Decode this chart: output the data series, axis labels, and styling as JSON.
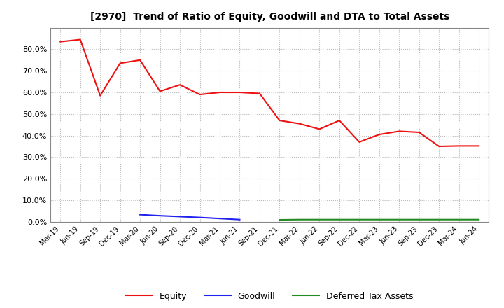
{
  "title": "[2970]  Trend of Ratio of Equity, Goodwill and DTA to Total Assets",
  "labels": [
    "Mar-19",
    "Jun-19",
    "Sep-19",
    "Dec-19",
    "Mar-20",
    "Jun-20",
    "Sep-20",
    "Dec-20",
    "Mar-21",
    "Jun-21",
    "Sep-21",
    "Dec-21",
    "Mar-22",
    "Jun-22",
    "Sep-22",
    "Dec-22",
    "Mar-23",
    "Jun-23",
    "Sep-23",
    "Dec-23",
    "Mar-24",
    "Jun-24"
  ],
  "equity": [
    0.835,
    0.845,
    0.585,
    0.735,
    0.75,
    0.605,
    0.635,
    0.59,
    0.6,
    0.6,
    0.595,
    0.47,
    0.455,
    0.43,
    0.47,
    0.37,
    0.405,
    0.42,
    0.415,
    0.35,
    0.352,
    0.352
  ],
  "goodwill": [
    null,
    null,
    null,
    null,
    0.033,
    0.028,
    0.024,
    0.02,
    0.015,
    0.01,
    null,
    null,
    null,
    null,
    null,
    null,
    null,
    null,
    null,
    null,
    null,
    null
  ],
  "dta": [
    null,
    null,
    null,
    null,
    null,
    null,
    null,
    null,
    null,
    null,
    null,
    0.009,
    0.01,
    0.01,
    0.01,
    0.01,
    0.01,
    0.01,
    0.01,
    0.01,
    0.01,
    0.01
  ],
  "equity_color": "#EE1111",
  "goodwill_color": "#2222EE",
  "dta_color": "#228B22",
  "bg_color": "#FFFFFF",
  "plot_bg_color": "#FFFFFF",
  "grid_color": "#BBBBBB",
  "ylim": [
    0.0,
    0.9
  ],
  "yticks": [
    0.0,
    0.1,
    0.2,
    0.3,
    0.4,
    0.5,
    0.6,
    0.7,
    0.8
  ],
  "legend_labels": [
    "Equity",
    "Goodwill",
    "Deferred Tax Assets"
  ],
  "linewidth": 1.5
}
